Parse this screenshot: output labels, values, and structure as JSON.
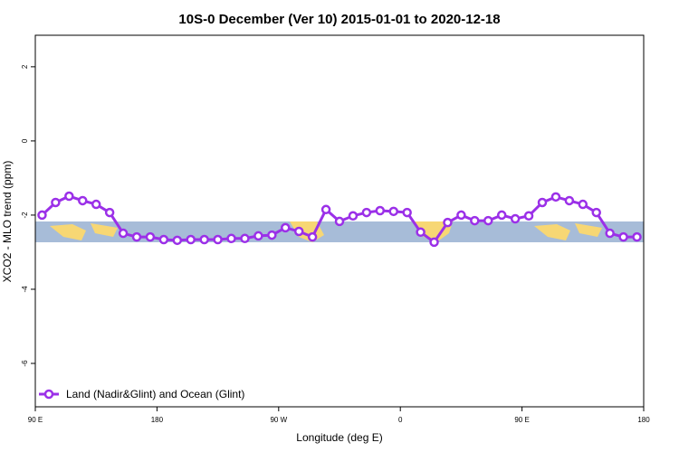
{
  "chart_data": {
    "type": "line",
    "title": "10S-0 December (Ver 10)   2015-01-01 to 2020-12-18",
    "x_label": "Longitude (deg E)",
    "y_label": "XCO2 - MLO trend (ppm)",
    "x": [
      95,
      105,
      115,
      125,
      135,
      145,
      155,
      165,
      175,
      185,
      195,
      205,
      215,
      225,
      235,
      245,
      255,
      265,
      275,
      285,
      295,
      305,
      315,
      325,
      335,
      345,
      355,
      365,
      375,
      385,
      395,
      405,
      415,
      425,
      435,
      445,
      455,
      465,
      475,
      485,
      495,
      505,
      515,
      525,
      535
    ],
    "series": [
      {
        "name": "Land (Nadir&Glint) and Ocean (Glint)",
        "color": "#9b30e8",
        "values": [
          -2.0,
          -1.66,
          -1.49,
          -1.61,
          -1.71,
          -1.93,
          -2.49,
          -2.59,
          -2.59,
          -2.66,
          -2.68,
          -2.66,
          -2.66,
          -2.66,
          -2.63,
          -2.63,
          -2.56,
          -2.54,
          -2.34,
          -2.44,
          -2.59,
          -1.85,
          -2.17,
          -2.02,
          -1.93,
          -1.88,
          -1.9,
          -1.93,
          -2.46,
          -2.73,
          -2.2,
          -2.0,
          -2.15,
          -2.15,
          -2.0,
          -2.1,
          -2.02,
          -1.66,
          -1.51,
          -1.61,
          -1.71,
          -1.93,
          -2.49,
          -2.59,
          -2.59
        ]
      }
    ],
    "xlim": [
      90,
      540
    ],
    "xticks": [
      {
        "value": 90,
        "label": "90 E"
      },
      180,
      {
        "value": 270,
        "label": "90 W"
      },
      {
        "value": 360,
        "label": "0"
      },
      {
        "value": 450,
        "label": "90 E"
      },
      {
        "value": 540,
        "label": "180"
      }
    ],
    "ylim": [
      -7.17,
      2.85
    ],
    "yticks": [
      2,
      0,
      -2,
      -4,
      -6
    ],
    "legend": "bottom-left"
  }
}
